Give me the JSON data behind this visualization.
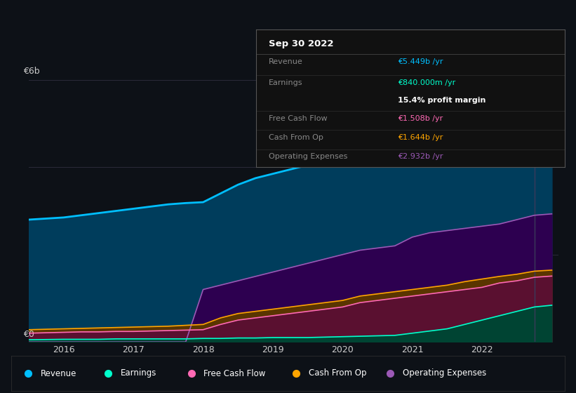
{
  "bg_color": "#0d1117",
  "plot_bg": "#0d1117",
  "grid_color": "#2a2a3a",
  "text_color": "#cccccc",
  "y_label_text": "€6b",
  "y_zero_text": "€0",
  "x_ticks": [
    2016,
    2017,
    2018,
    2019,
    2020,
    2021,
    2022
  ],
  "years": [
    2015.5,
    2016.0,
    2016.25,
    2016.5,
    2016.75,
    2017.0,
    2017.25,
    2017.5,
    2017.75,
    2018.0,
    2018.25,
    2018.5,
    2018.75,
    2019.0,
    2019.25,
    2019.5,
    2019.75,
    2020.0,
    2020.25,
    2020.5,
    2020.75,
    2021.0,
    2021.25,
    2021.5,
    2021.75,
    2022.0,
    2022.25,
    2022.5,
    2022.75,
    2023.0
  ],
  "revenue": [
    2.8,
    2.85,
    2.9,
    2.95,
    3.0,
    3.05,
    3.1,
    3.15,
    3.18,
    3.2,
    3.4,
    3.6,
    3.75,
    3.85,
    3.95,
    4.05,
    4.1,
    4.2,
    4.3,
    4.35,
    4.5,
    4.7,
    4.8,
    4.9,
    5.0,
    5.1,
    5.2,
    5.3,
    5.4,
    5.449
  ],
  "earnings": [
    0.05,
    0.06,
    0.06,
    0.06,
    0.07,
    0.07,
    0.07,
    0.07,
    0.07,
    0.08,
    0.08,
    0.09,
    0.09,
    0.1,
    0.1,
    0.1,
    0.11,
    0.12,
    0.13,
    0.14,
    0.15,
    0.2,
    0.25,
    0.3,
    0.4,
    0.5,
    0.6,
    0.7,
    0.8,
    0.84
  ],
  "free_cash_flow": [
    0.2,
    0.22,
    0.23,
    0.23,
    0.24,
    0.24,
    0.25,
    0.26,
    0.27,
    0.28,
    0.4,
    0.5,
    0.55,
    0.6,
    0.65,
    0.7,
    0.75,
    0.8,
    0.9,
    0.95,
    1.0,
    1.05,
    1.1,
    1.15,
    1.2,
    1.25,
    1.35,
    1.4,
    1.48,
    1.508
  ],
  "cash_from_op": [
    0.28,
    0.3,
    0.31,
    0.32,
    0.33,
    0.34,
    0.35,
    0.36,
    0.38,
    0.4,
    0.55,
    0.65,
    0.7,
    0.75,
    0.8,
    0.85,
    0.9,
    0.95,
    1.05,
    1.1,
    1.15,
    1.2,
    1.25,
    1.3,
    1.38,
    1.44,
    1.5,
    1.55,
    1.62,
    1.644
  ],
  "op_expenses": [
    0.0,
    0.0,
    0.0,
    0.0,
    0.0,
    0.0,
    0.0,
    0.0,
    0.0,
    1.2,
    1.3,
    1.4,
    1.5,
    1.6,
    1.7,
    1.8,
    1.9,
    2.0,
    2.1,
    2.15,
    2.2,
    2.4,
    2.5,
    2.55,
    2.6,
    2.65,
    2.7,
    2.8,
    2.9,
    2.932
  ],
  "revenue_color": "#00bfff",
  "earnings_color": "#00ffcc",
  "free_cash_flow_color": "#ff69b4",
  "cash_from_op_color": "#ffa500",
  "op_expenses_color": "#9b59b6",
  "revenue_fill": "#003d5c",
  "earnings_fill": "#004433",
  "free_cash_flow_fill": "#5a1030",
  "cash_from_op_fill": "#5a3500",
  "op_expenses_fill": "#2d0050",
  "tooltip_title": "Sep 30 2022",
  "tooltip_revenue_label": "Revenue",
  "tooltip_revenue_val": "€5.449b /yr",
  "tooltip_earnings_label": "Earnings",
  "tooltip_earnings_val": "€840.000m /yr",
  "tooltip_margin_val": "15.4% profit margin",
  "tooltip_fcf_label": "Free Cash Flow",
  "tooltip_fcf_val": "€1.508b /yr",
  "tooltip_cfop_label": "Cash From Op",
  "tooltip_cfop_val": "€1.644b /yr",
  "tooltip_opex_label": "Operating Expenses",
  "tooltip_opex_val": "€2.932b /yr",
  "ylim": [
    0,
    6.3
  ],
  "xlim": [
    2015.5,
    2023.1
  ],
  "vline_x": 2022.75,
  "legend_items": [
    {
      "color": "#00bfff",
      "label": "Revenue"
    },
    {
      "color": "#00ffcc",
      "label": "Earnings"
    },
    {
      "color": "#ff69b4",
      "label": "Free Cash Flow"
    },
    {
      "color": "#ffa500",
      "label": "Cash From Op"
    },
    {
      "color": "#9b59b6",
      "label": "Operating Expenses"
    }
  ]
}
